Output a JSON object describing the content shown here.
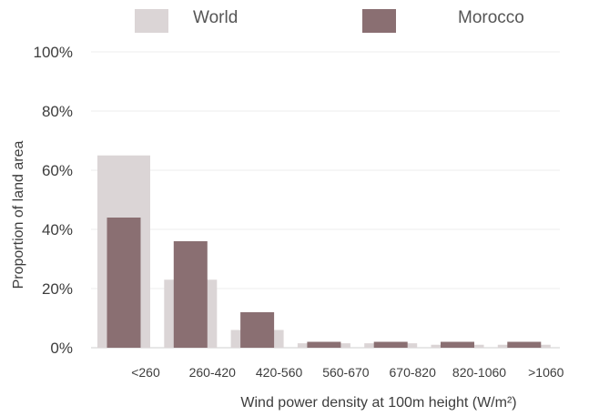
{
  "chart_data": {
    "type": "bar",
    "categories": [
      "<260",
      "260-420",
      "420-560",
      "560-670",
      "670-820",
      "820-1060",
      ">1060"
    ],
    "series": [
      {
        "name": "World",
        "values": [
          65,
          23,
          6,
          1.5,
          1.5,
          1,
          1
        ],
        "color": "#dbd5d6"
      },
      {
        "name": "Morocco",
        "values": [
          44,
          36,
          12,
          2,
          2,
          2,
          2
        ],
        "color": "#8a6f72"
      }
    ],
    "xlabel": "Wind power density at 100m height (W/m²)",
    "ylabel": "Proportion of land area",
    "ylim": [
      0,
      100
    ],
    "yticks": [
      "0%",
      "20%",
      "40%",
      "60%",
      "80%",
      "100%"
    ],
    "legend": "top",
    "grid": true
  }
}
